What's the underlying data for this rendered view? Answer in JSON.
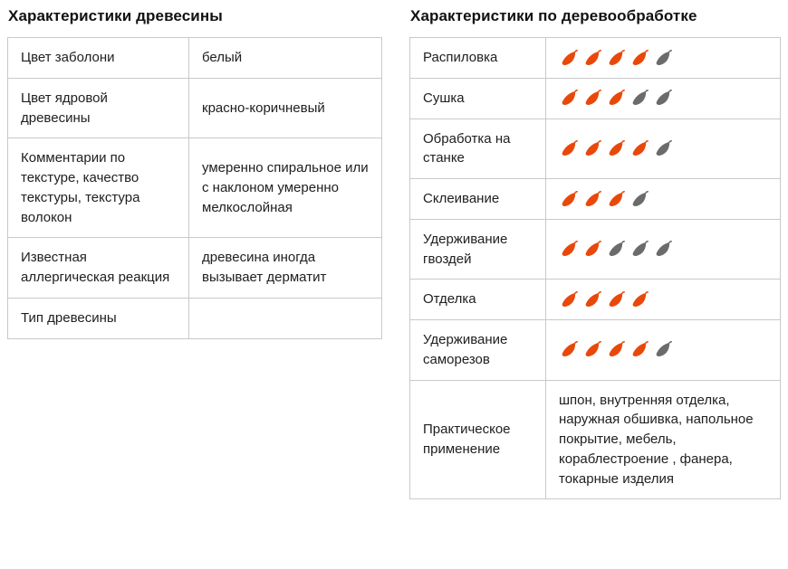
{
  "colors": {
    "leaf_filled": "#E8490B",
    "leaf_empty": "#6B6B6B",
    "border": "#C9C9C9",
    "text": "#202020"
  },
  "icons": {
    "rating_icon": "leaf-icon"
  },
  "left_table": {
    "title": "Характеристики древесины",
    "rows": [
      {
        "label": "Цвет заболони",
        "value": "белый"
      },
      {
        "label": "Цвет ядровой древесины",
        "value": "красно-коричневый"
      },
      {
        "label": "Комментарии по текстуре, качество текстуры, текстура волокон",
        "value": "умеренно спиральное или с наклоном умеренно мелкослойная"
      },
      {
        "label": "Известная аллергическая реакция",
        "value": "древесина иногда вызывает дерматит"
      },
      {
        "label": "Тип древесины",
        "value": ""
      }
    ]
  },
  "right_table": {
    "title": "Характеристики по деревообработке",
    "rows": [
      {
        "label": "Распиловка",
        "type": "rating",
        "filled": 4,
        "total": 5
      },
      {
        "label": "Сушка",
        "type": "rating",
        "filled": 3,
        "total": 5
      },
      {
        "label": "Обработка на станке",
        "type": "rating",
        "filled": 4,
        "total": 5
      },
      {
        "label": "Склеивание",
        "type": "rating",
        "filled": 3,
        "total": 4
      },
      {
        "label": "Удерживание гвоздей",
        "type": "rating",
        "filled": 2,
        "total": 5
      },
      {
        "label": "Отделка",
        "type": "rating",
        "filled": 4,
        "total": 4
      },
      {
        "label": "Удерживание саморезов",
        "type": "rating",
        "filled": 4,
        "total": 5
      },
      {
        "label": "Практическое применение",
        "type": "text",
        "value": "шпон, внутренняя отделка, наружная обшивка, напольное покрытие, мебель, кораблестроение , фанера, токарные изделия"
      }
    ]
  }
}
